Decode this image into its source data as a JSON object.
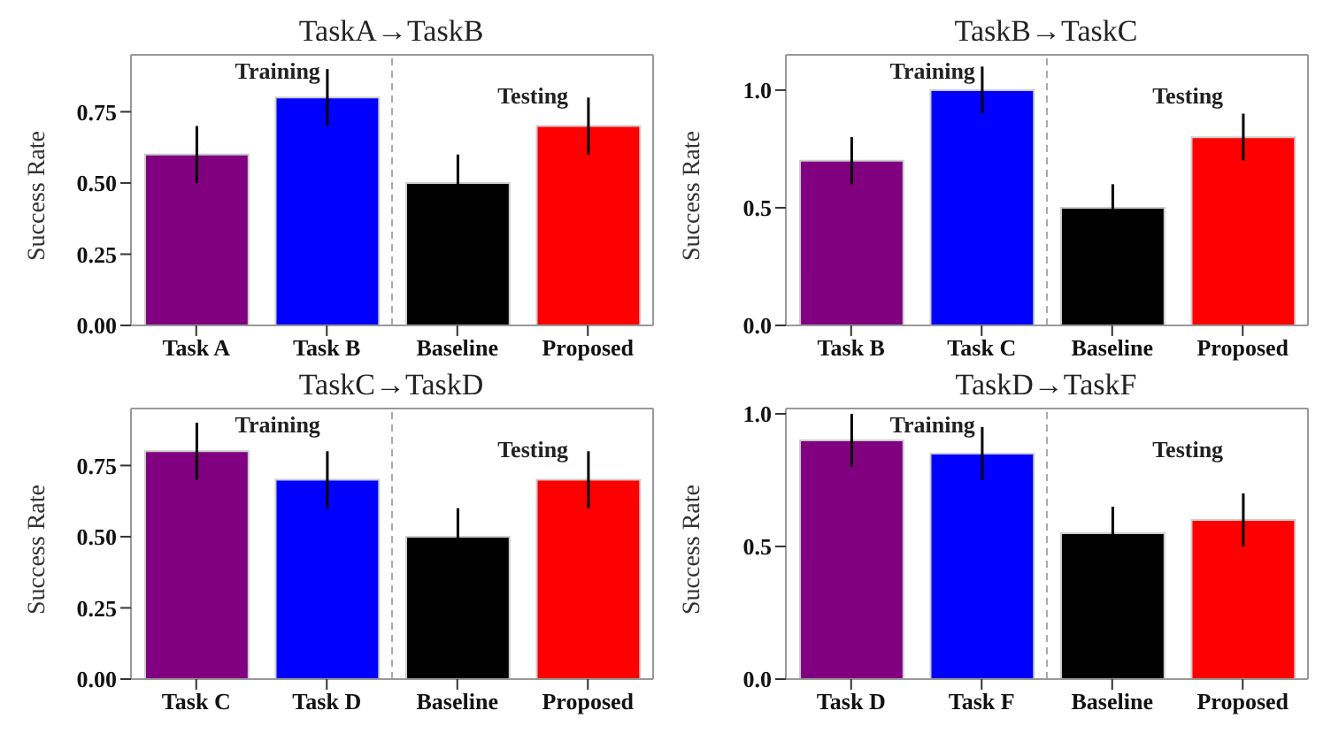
{
  "chart_data": [
    {
      "type": "bar",
      "title": "TaskA→TaskB",
      "ylabel": "Success Rate",
      "categories": [
        "Task A",
        "Task B",
        "Baseline",
        "Proposed"
      ],
      "values": [
        0.6,
        0.8,
        0.5,
        0.7
      ],
      "errors": [
        0.1,
        0.1,
        0.1,
        0.1
      ],
      "colors": [
        "#800080",
        "#0000ff",
        "#000000",
        "#ff0000"
      ],
      "ylim": [
        0,
        0.95
      ],
      "yticks": [
        {
          "value": 0,
          "label": "0.00"
        },
        {
          "value": 0.25,
          "label": "0.25"
        },
        {
          "value": 0.5,
          "label": "0.50"
        },
        {
          "value": 0.75,
          "label": "0.75"
        }
      ],
      "annotations": [
        "Training",
        "Testing"
      ],
      "grid": false,
      "legend": false
    },
    {
      "type": "bar",
      "title": "TaskB→TaskC",
      "ylabel": "Success Rate",
      "categories": [
        "Task B",
        "Task C",
        "Baseline",
        "Proposed"
      ],
      "values": [
        0.7,
        1.0,
        0.5,
        0.8
      ],
      "errors": [
        0.1,
        0.1,
        0.1,
        0.1
      ],
      "colors": [
        "#800080",
        "#0000ff",
        "#000000",
        "#ff0000"
      ],
      "ylim": [
        0,
        1.15
      ],
      "yticks": [
        {
          "value": 0,
          "label": "0.0"
        },
        {
          "value": 0.5,
          "label": "0.5"
        },
        {
          "value": 1,
          "label": "1.0"
        }
      ],
      "annotations": [
        "Training",
        "Testing"
      ],
      "grid": false,
      "legend": false
    },
    {
      "type": "bar",
      "title": "TaskC→TaskD",
      "ylabel": "Success Rate",
      "categories": [
        "Task C",
        "Task D",
        "Baseline",
        "Proposed"
      ],
      "values": [
        0.8,
        0.7,
        0.5,
        0.7
      ],
      "errors": [
        0.1,
        0.1,
        0.1,
        0.1
      ],
      "colors": [
        "#800080",
        "#0000ff",
        "#000000",
        "#ff0000"
      ],
      "ylim": [
        0,
        0.95
      ],
      "yticks": [
        {
          "value": 0,
          "label": "0.00"
        },
        {
          "value": 0.25,
          "label": "0.25"
        },
        {
          "value": 0.5,
          "label": "0.50"
        },
        {
          "value": 0.75,
          "label": "0.75"
        }
      ],
      "annotations": [
        "Training",
        "Testing"
      ],
      "grid": false,
      "legend": false
    },
    {
      "type": "bar",
      "title": "TaskD→TaskF",
      "ylabel": "Success Rate",
      "categories": [
        "Task D",
        "Task F",
        "Baseline",
        "Proposed"
      ],
      "values": [
        0.9,
        0.85,
        0.55,
        0.6
      ],
      "errors": [
        0.1,
        0.1,
        0.1,
        0.1
      ],
      "colors": [
        "#800080",
        "#0000ff",
        "#000000",
        "#ff0000"
      ],
      "ylim": [
        0,
        1.02
      ],
      "yticks": [
        {
          "value": 0,
          "label": "0.0"
        },
        {
          "value": 0.5,
          "label": "0.5"
        },
        {
          "value": 1,
          "label": "1.0"
        }
      ],
      "annotations": [
        "Training",
        "Testing"
      ],
      "grid": false,
      "legend": false
    }
  ]
}
